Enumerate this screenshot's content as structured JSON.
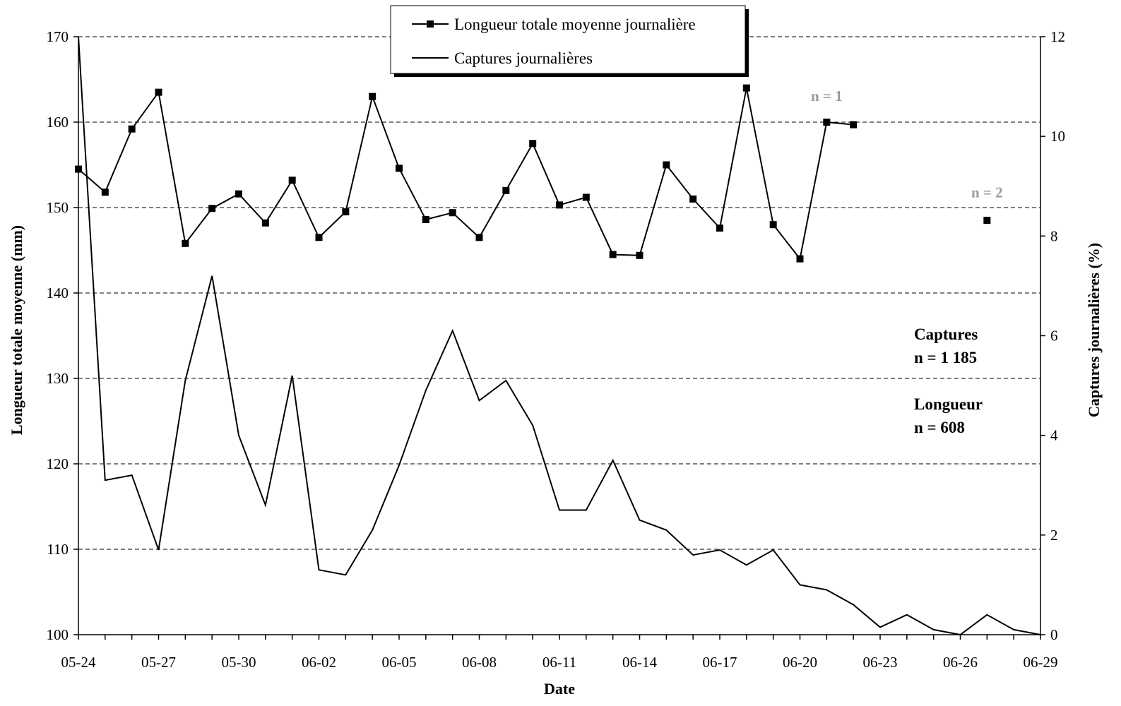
{
  "chart_data": {
    "type": "line",
    "x_axis": {
      "label": "Date",
      "tick_labels": [
        "05-24",
        "05-27",
        "05-30",
        "06-02",
        "06-05",
        "06-08",
        "06-11",
        "06-14",
        "06-17",
        "06-20",
        "06-23",
        "06-26",
        "06-29"
      ]
    },
    "y_left": {
      "label": "Longueur totale moyenne (mm)",
      "range": [
        100,
        170
      ],
      "ticks": [
        100,
        110,
        120,
        130,
        140,
        150,
        160,
        170
      ]
    },
    "y_right": {
      "label": "Captures journalières (%)",
      "range": [
        0,
        12
      ],
      "ticks": [
        0,
        2,
        4,
        6,
        8,
        10,
        12
      ]
    },
    "grid": "horizontal dashed",
    "legend_position": "top-center",
    "series": [
      {
        "name": "Longueur totale moyenne journalière",
        "axis": "left",
        "marker": "square",
        "x": [
          "05-24",
          "05-25",
          "05-26",
          "05-27",
          "05-28",
          "05-29",
          "05-30",
          "05-31",
          "06-01",
          "06-02",
          "06-03",
          "06-04",
          "06-05",
          "06-06",
          "06-07",
          "06-08",
          "06-09",
          "06-10",
          "06-11",
          "06-12",
          "06-13",
          "06-14",
          "06-15",
          "06-16",
          "06-17",
          "06-18",
          "06-19",
          "06-20",
          "06-21",
          "06-22"
        ],
        "values": [
          154.5,
          151.8,
          159.2,
          163.5,
          145.8,
          149.9,
          151.6,
          148.2,
          153.2,
          146.5,
          149.5,
          163.0,
          154.6,
          148.6,
          149.4,
          146.5,
          152.0,
          157.5,
          150.3,
          151.2,
          144.5,
          144.4,
          155.0,
          151.0,
          147.6,
          164.0,
          148.0,
          144.0,
          160.0,
          159.7
        ],
        "isolated_points": [
          {
            "x": "06-27",
            "value": 148.5
          }
        ]
      },
      {
        "name": "Captures journalières",
        "axis": "right",
        "x": [
          "05-24",
          "05-25",
          "05-26",
          "05-27",
          "05-28",
          "05-29",
          "05-30",
          "05-31",
          "06-01",
          "06-02",
          "06-03",
          "06-04",
          "06-05",
          "06-06",
          "06-07",
          "06-08",
          "06-09",
          "06-10",
          "06-11",
          "06-12",
          "06-13",
          "06-14",
          "06-15",
          "06-16",
          "06-17",
          "06-18",
          "06-19",
          "06-20",
          "06-21",
          "06-22",
          "06-23",
          "06-24",
          "06-25",
          "06-26",
          "06-27",
          "06-28",
          "06-29"
        ],
        "values": [
          12.0,
          3.1,
          3.2,
          1.7,
          5.1,
          7.2,
          4.0,
          2.6,
          5.2,
          1.3,
          1.2,
          2.1,
          3.4,
          4.9,
          6.1,
          4.7,
          5.1,
          4.2,
          2.5,
          2.5,
          3.5,
          2.3,
          2.1,
          1.6,
          1.7,
          1.4,
          1.7,
          1.0,
          0.9,
          0.6,
          0.15,
          0.4,
          0.1,
          0.0,
          0.4,
          0.1,
          0.0
        ]
      }
    ],
    "annotations": [
      {
        "text": "n = 1",
        "x": "06-21",
        "value": 162.5,
        "axis": "left"
      },
      {
        "text": "n = 2",
        "x": "06-27",
        "value": 151.2,
        "axis": "left"
      }
    ],
    "info_box": {
      "captures_title": "Captures",
      "captures_n": "n = 1 185",
      "length_title": "Longueur",
      "length_n": "n = 608"
    }
  }
}
